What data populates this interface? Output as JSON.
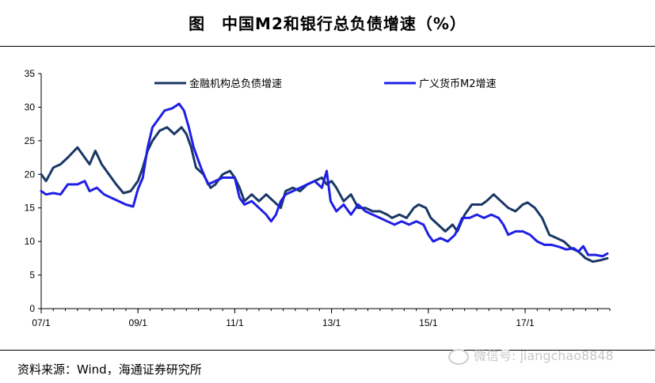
{
  "title": "图　中国M2和银行总负债增速（%）",
  "source": "资料来源：Wind，海通证券研究所",
  "watermark": "微信号: jiangchao8848",
  "colors": {
    "liabilities": "#1a3766",
    "m2": "#1f1fe6"
  },
  "chart_data": {
    "type": "line",
    "title": "中国M2和银行总负债增速（%）",
    "xlabel": "",
    "ylabel": "",
    "ylim": [
      0,
      35
    ],
    "yticks": [
      0,
      5,
      10,
      15,
      20,
      25,
      30,
      35
    ],
    "xlim": [
      2007.0,
      2018.75
    ],
    "xticks": [
      {
        "label": "07/1",
        "x": 2007.0
      },
      {
        "label": "09/1",
        "x": 2009.0
      },
      {
        "label": "11/1",
        "x": 2011.0
      },
      {
        "label": "13/1",
        "x": 2013.0
      },
      {
        "label": "15/1",
        "x": 2015.0
      },
      {
        "label": "17/1",
        "x": 2017.0
      }
    ],
    "legend_position": "top",
    "series": [
      {
        "name": "金融机构总负债增速",
        "color_key": "liabilities",
        "points": [
          [
            2007.0,
            20
          ],
          [
            2007.1,
            19
          ],
          [
            2007.25,
            21
          ],
          [
            2007.4,
            21.5
          ],
          [
            2007.55,
            22.5
          ],
          [
            2007.75,
            24
          ],
          [
            2007.9,
            22.5
          ],
          [
            2008.0,
            21.5
          ],
          [
            2008.12,
            23.5
          ],
          [
            2008.25,
            21.5
          ],
          [
            2008.4,
            20
          ],
          [
            2008.55,
            18.5
          ],
          [
            2008.7,
            17.2
          ],
          [
            2008.85,
            17.5
          ],
          [
            2009.0,
            19
          ],
          [
            2009.1,
            21
          ],
          [
            2009.2,
            23.5
          ],
          [
            2009.3,
            25
          ],
          [
            2009.45,
            26.5
          ],
          [
            2009.6,
            27
          ],
          [
            2009.75,
            26
          ],
          [
            2009.9,
            27
          ],
          [
            2010.0,
            26
          ],
          [
            2010.1,
            24
          ],
          [
            2010.2,
            21
          ],
          [
            2010.35,
            20
          ],
          [
            2010.5,
            18
          ],
          [
            2010.6,
            18.5
          ],
          [
            2010.75,
            20
          ],
          [
            2010.9,
            20.5
          ],
          [
            2011.0,
            19.5
          ],
          [
            2011.1,
            18
          ],
          [
            2011.2,
            16
          ],
          [
            2011.35,
            17
          ],
          [
            2011.5,
            16
          ],
          [
            2011.65,
            17
          ],
          [
            2011.8,
            16
          ],
          [
            2011.95,
            15
          ],
          [
            2012.05,
            17.5
          ],
          [
            2012.2,
            18
          ],
          [
            2012.35,
            17.5
          ],
          [
            2012.5,
            18.5
          ],
          [
            2012.65,
            19
          ],
          [
            2012.8,
            19.5
          ],
          [
            2012.9,
            18.5
          ],
          [
            2013.0,
            19
          ],
          [
            2013.1,
            18
          ],
          [
            2013.25,
            16
          ],
          [
            2013.4,
            17
          ],
          [
            2013.55,
            15
          ],
          [
            2013.7,
            15
          ],
          [
            2013.85,
            14.5
          ],
          [
            2014.0,
            14.5
          ],
          [
            2014.15,
            14
          ],
          [
            2014.25,
            13.5
          ],
          [
            2014.4,
            14
          ],
          [
            2014.55,
            13.5
          ],
          [
            2014.7,
            15
          ],
          [
            2014.8,
            15.5
          ],
          [
            2014.95,
            15
          ],
          [
            2015.05,
            13.5
          ],
          [
            2015.2,
            12.5
          ],
          [
            2015.35,
            11.5
          ],
          [
            2015.5,
            12.5
          ],
          [
            2015.6,
            11.5
          ],
          [
            2015.75,
            14
          ],
          [
            2015.9,
            15.5
          ],
          [
            2016.1,
            15.5
          ],
          [
            2016.2,
            16
          ],
          [
            2016.35,
            17
          ],
          [
            2016.5,
            16
          ],
          [
            2016.65,
            15
          ],
          [
            2016.8,
            14.5
          ],
          [
            2016.95,
            15.5
          ],
          [
            2017.05,
            15.8
          ],
          [
            2017.2,
            15
          ],
          [
            2017.35,
            13.5
          ],
          [
            2017.5,
            11
          ],
          [
            2017.65,
            10.5
          ],
          [
            2017.8,
            10
          ],
          [
            2017.95,
            9
          ],
          [
            2018.1,
            8.5
          ],
          [
            2018.25,
            7.5
          ],
          [
            2018.4,
            7
          ],
          [
            2018.55,
            7.2
          ],
          [
            2018.7,
            7.5
          ]
        ]
      },
      {
        "name": "广义货币M2增速",
        "color_key": "m2",
        "points": [
          [
            2007.0,
            17.5
          ],
          [
            2007.1,
            17
          ],
          [
            2007.25,
            17.2
          ],
          [
            2007.4,
            17
          ],
          [
            2007.55,
            18.5
          ],
          [
            2007.75,
            18.5
          ],
          [
            2007.9,
            19
          ],
          [
            2008.0,
            17.5
          ],
          [
            2008.15,
            18
          ],
          [
            2008.3,
            17
          ],
          [
            2008.45,
            16.5
          ],
          [
            2008.6,
            16
          ],
          [
            2008.75,
            15.5
          ],
          [
            2008.9,
            15.2
          ],
          [
            2009.0,
            17.8
          ],
          [
            2009.1,
            19.5
          ],
          [
            2009.2,
            24
          ],
          [
            2009.3,
            27
          ],
          [
            2009.4,
            28
          ],
          [
            2009.55,
            29.5
          ],
          [
            2009.7,
            29.8
          ],
          [
            2009.85,
            30.5
          ],
          [
            2009.95,
            29.5
          ],
          [
            2010.05,
            27
          ],
          [
            2010.15,
            24
          ],
          [
            2010.3,
            21
          ],
          [
            2010.45,
            18.5
          ],
          [
            2010.6,
            19
          ],
          [
            2010.75,
            19.5
          ],
          [
            2010.9,
            19.5
          ],
          [
            2011.0,
            19.5
          ],
          [
            2011.1,
            16.5
          ],
          [
            2011.2,
            15.5
          ],
          [
            2011.35,
            16
          ],
          [
            2011.5,
            15
          ],
          [
            2011.65,
            14
          ],
          [
            2011.75,
            13
          ],
          [
            2011.85,
            14
          ],
          [
            2011.95,
            16
          ],
          [
            2012.05,
            17
          ],
          [
            2012.2,
            17.5
          ],
          [
            2012.35,
            18
          ],
          [
            2012.5,
            18.5
          ],
          [
            2012.65,
            19
          ],
          [
            2012.8,
            18
          ],
          [
            2012.9,
            20.5
          ],
          [
            2012.98,
            16
          ],
          [
            2013.1,
            14.5
          ],
          [
            2013.25,
            15.5
          ],
          [
            2013.4,
            14
          ],
          [
            2013.55,
            15.5
          ],
          [
            2013.7,
            14.5
          ],
          [
            2013.85,
            14
          ],
          [
            2014.0,
            13.5
          ],
          [
            2014.15,
            13
          ],
          [
            2014.3,
            12.5
          ],
          [
            2014.45,
            13
          ],
          [
            2014.6,
            12.5
          ],
          [
            2014.75,
            13
          ],
          [
            2014.9,
            12.5
          ],
          [
            2015.0,
            11
          ],
          [
            2015.1,
            10
          ],
          [
            2015.25,
            10.5
          ],
          [
            2015.4,
            10
          ],
          [
            2015.55,
            11
          ],
          [
            2015.7,
            13.5
          ],
          [
            2015.85,
            13.5
          ],
          [
            2016.0,
            14
          ],
          [
            2016.15,
            13.5
          ],
          [
            2016.3,
            14
          ],
          [
            2016.45,
            13.5
          ],
          [
            2016.55,
            12.5
          ],
          [
            2016.65,
            11
          ],
          [
            2016.8,
            11.5
          ],
          [
            2016.95,
            11.5
          ],
          [
            2017.1,
            11
          ],
          [
            2017.25,
            10
          ],
          [
            2017.4,
            9.5
          ],
          [
            2017.55,
            9.5
          ],
          [
            2017.7,
            9.2
          ],
          [
            2017.85,
            8.8
          ],
          [
            2018.0,
            9
          ],
          [
            2018.1,
            8.5
          ],
          [
            2018.2,
            9.3
          ],
          [
            2018.3,
            8
          ],
          [
            2018.45,
            8
          ],
          [
            2018.6,
            7.8
          ],
          [
            2018.7,
            8.2
          ]
        ]
      }
    ]
  }
}
